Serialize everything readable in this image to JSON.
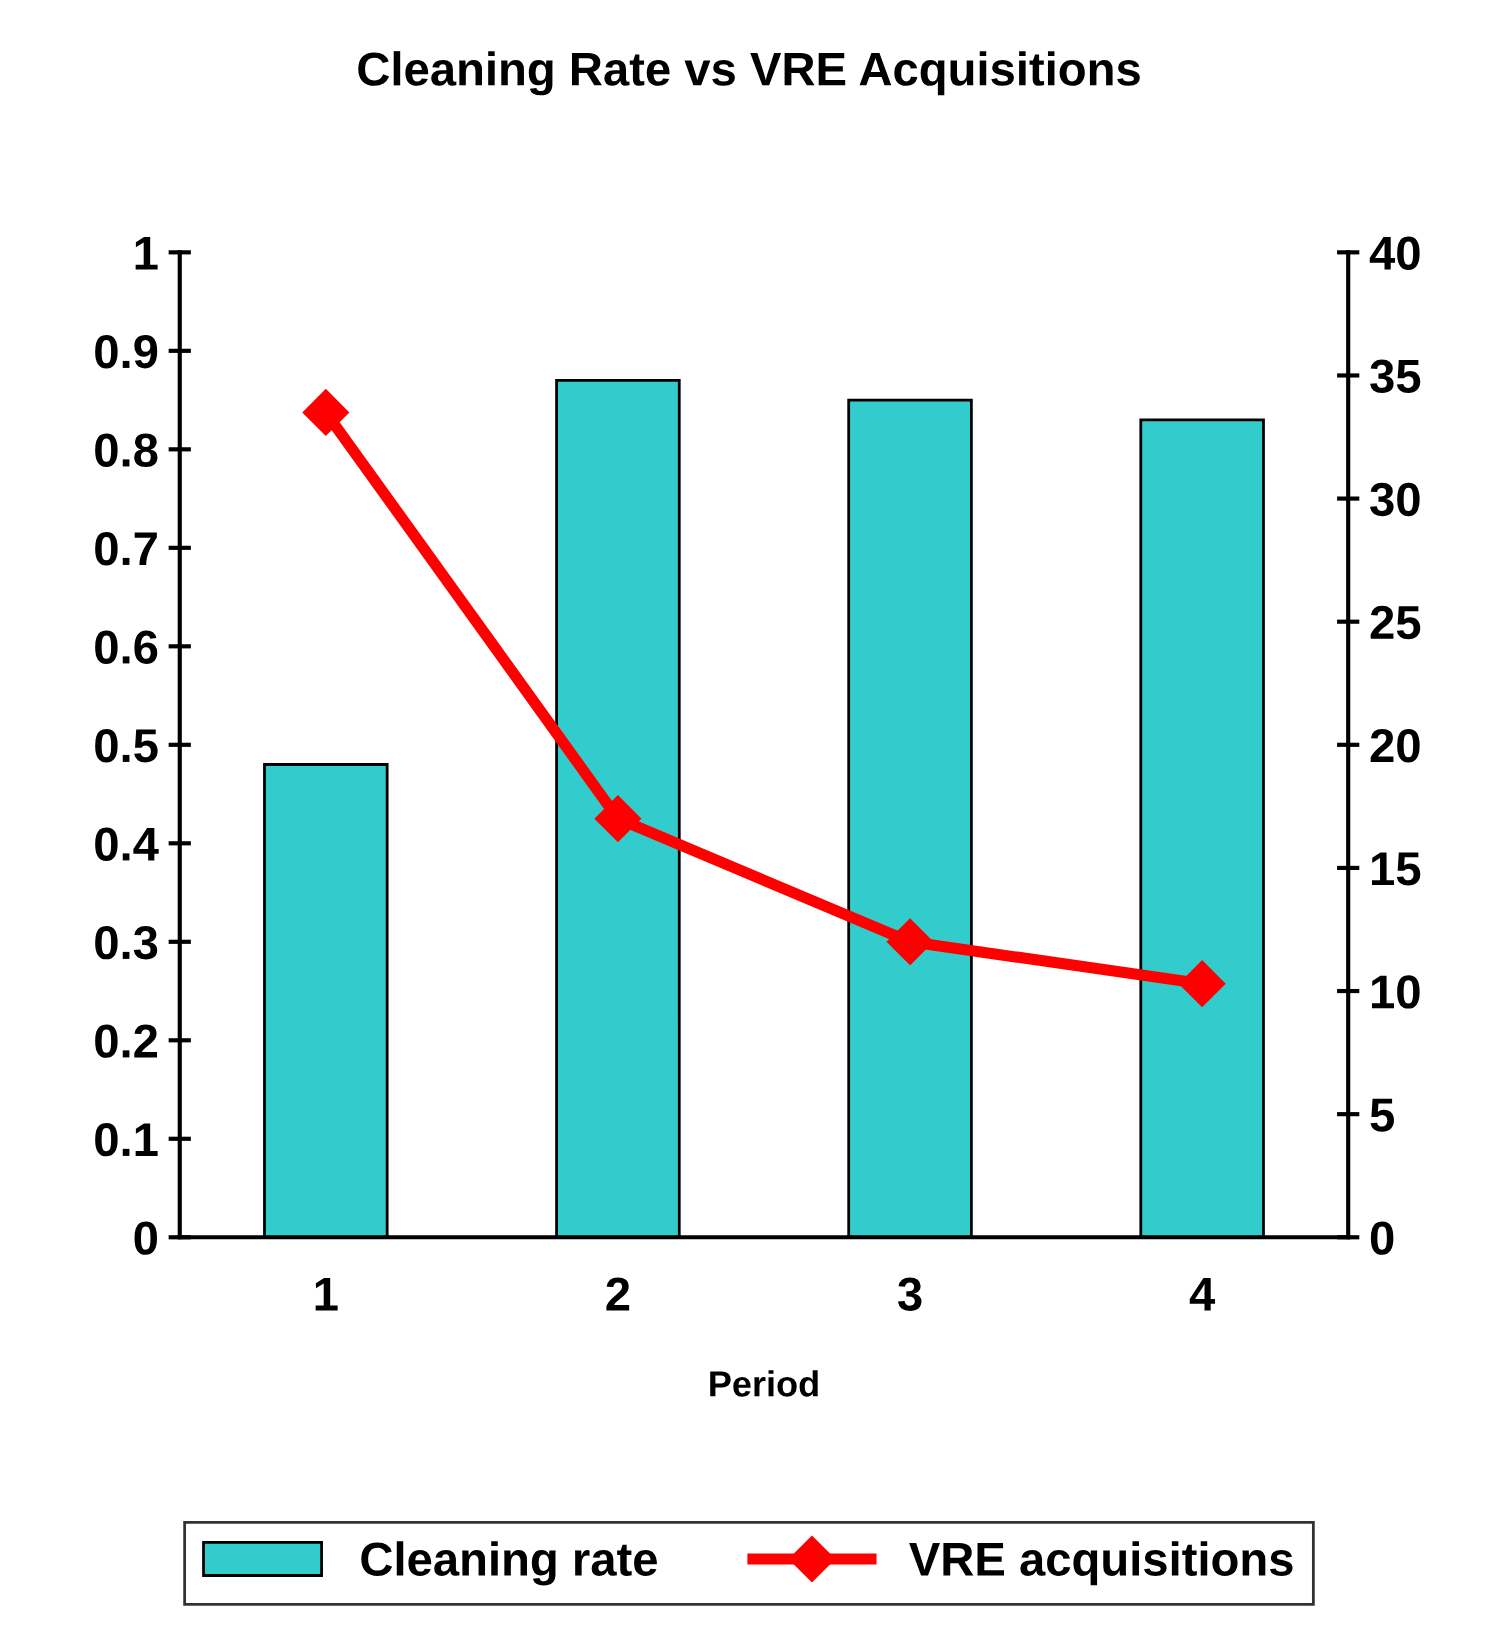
{
  "chart_data": {
    "type": "bar",
    "title": "Cleaning Rate vs VRE Acquisitions",
    "xlabel": "Period",
    "categories": [
      "1",
      "2",
      "3",
      "4"
    ],
    "series": [
      {
        "name": "Cleaning rate",
        "color": "#33cccc",
        "values": [
          0.48,
          0.87,
          0.85,
          0.83
        ]
      },
      {
        "name": "VRE acquisitions",
        "type": "line",
        "axis": "y2",
        "color": "#ff0000",
        "values": [
          33.5,
          17,
          12,
          10.3
        ]
      }
    ],
    "ylim": [
      0,
      1
    ],
    "yticks": [
      0,
      0.1,
      0.2,
      0.3,
      0.4,
      0.5,
      0.6,
      0.7,
      0.8,
      0.9,
      1
    ],
    "y2lim": [
      0,
      40
    ],
    "y2ticks": [
      0,
      5,
      10,
      15,
      20,
      25,
      30,
      35,
      40
    ],
    "marker": "diamond",
    "line_style": "solid",
    "grid": false,
    "legend": "bottom"
  }
}
